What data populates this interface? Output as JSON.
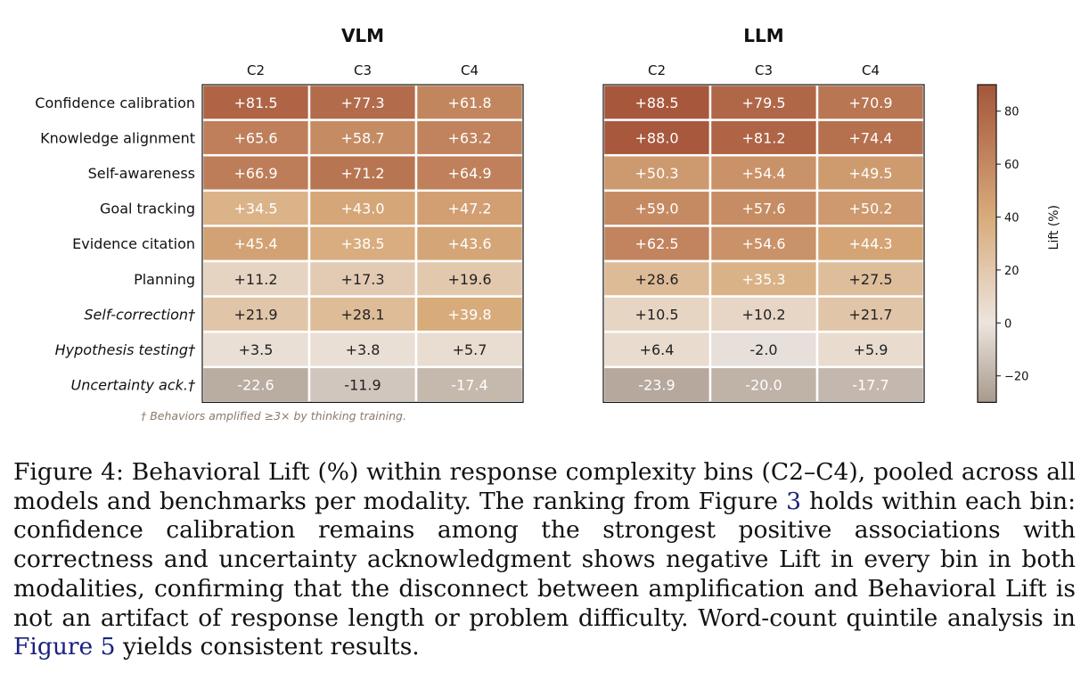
{
  "chart_data": {
    "type": "heatmap",
    "rows": [
      "Confidence calibration",
      "Knowledge alignment",
      "Self-awareness",
      "Goal tracking",
      "Evidence citation",
      "Planning",
      "Self-correction†",
      "Hypothesis testing†",
      "Uncertainty ack.†"
    ],
    "italic_rows": [
      "Self-correction†",
      "Hypothesis testing†",
      "Uncertainty ack.†"
    ],
    "panels": [
      {
        "title": "VLM",
        "columns": [
          "C2",
          "C3",
          "C4"
        ],
        "values": [
          [
            81.5,
            77.3,
            61.8
          ],
          [
            65.6,
            58.7,
            63.2
          ],
          [
            66.9,
            71.2,
            64.9
          ],
          [
            34.5,
            43.0,
            47.2
          ],
          [
            45.4,
            38.5,
            43.6
          ],
          [
            11.2,
            17.3,
            19.6
          ],
          [
            21.9,
            28.1,
            39.8
          ],
          [
            3.5,
            3.8,
            5.7
          ],
          [
            -22.6,
            -11.9,
            -17.4
          ]
        ],
        "labels": [
          [
            "+81.5",
            "+77.3",
            "+61.8"
          ],
          [
            "+65.6",
            "+58.7",
            "+63.2"
          ],
          [
            "+66.9",
            "+71.2",
            "+64.9"
          ],
          [
            "+34.5",
            "+43.0",
            "+47.2"
          ],
          [
            "+45.4",
            "+38.5",
            "+43.6"
          ],
          [
            "+11.2",
            "+17.3",
            "+19.6"
          ],
          [
            "+21.9",
            "+28.1",
            "+39.8"
          ],
          [
            "+3.5",
            "+3.8",
            "+5.7"
          ],
          [
            "-22.6",
            "-11.9",
            "-17.4"
          ]
        ]
      },
      {
        "title": "LLM",
        "columns": [
          "C2",
          "C3",
          "C4"
        ],
        "values": [
          [
            88.5,
            79.5,
            70.9
          ],
          [
            88.0,
            81.2,
            74.4
          ],
          [
            50.3,
            54.4,
            49.5
          ],
          [
            59.0,
            57.6,
            50.2
          ],
          [
            62.5,
            54.6,
            44.3
          ],
          [
            28.6,
            35.3,
            27.5
          ],
          [
            10.5,
            10.2,
            21.7
          ],
          [
            6.4,
            -2.0,
            5.9
          ],
          [
            -23.9,
            -20.0,
            -17.7
          ]
        ],
        "labels": [
          [
            "+88.5",
            "+79.5",
            "+70.9"
          ],
          [
            "+88.0",
            "+81.2",
            "+74.4"
          ],
          [
            "+50.3",
            "+54.4",
            "+49.5"
          ],
          [
            "+59.0",
            "+57.6",
            "+50.2"
          ],
          [
            "+62.5",
            "+54.6",
            "+44.3"
          ],
          [
            "+28.6",
            "+35.3",
            "+27.5"
          ],
          [
            "+10.5",
            "+10.2",
            "+21.7"
          ],
          [
            "+6.4",
            "-2.0",
            "+5.9"
          ],
          [
            "-23.9",
            "-20.0",
            "-17.7"
          ]
        ]
      }
    ],
    "colorbar": {
      "label": "Lift (%)",
      "vmin": -30,
      "vmax": 90,
      "ticks": [
        80,
        60,
        40,
        20,
        0,
        -20
      ],
      "tick_labels": [
        "80",
        "60",
        "40",
        "20",
        "0",
        "−20"
      ]
    },
    "colormap": {
      "low": "#a8998c",
      "mid": "#ece4de",
      "warm": "#d8ab7b",
      "high": "#a5553a"
    },
    "separator_after_row": "Planning",
    "footnote": "† Behaviors amplified ≥3× by thinking training."
  },
  "caption": {
    "lead": "Figure 4: Behavioral Lift (%) within response complexity bins (C2–C4), pooled across all models and benchmarks per modality. The ranking from Figure ",
    "ref1": "3",
    "middle": " holds within each bin: confidence calibration remains among the strongest positive associations with correctness and uncertainty acknowledgment shows negative Lift in every bin in both modalities, confirming that the disconnect between amplification and Behavioral Lift is not an artifact of response length or problem difficulty. Word-count quintile analysis in ",
    "ref2": "Figure 5",
    "tail": " yields consistent results."
  }
}
